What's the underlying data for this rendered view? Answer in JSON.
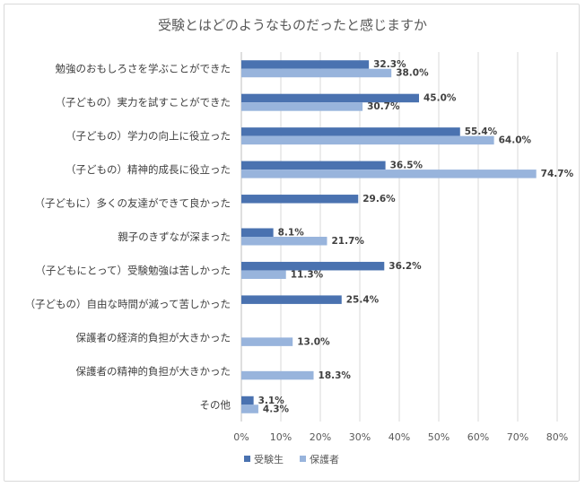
{
  "chart_data": {
    "type": "bar",
    "orientation": "horizontal",
    "title": "受験とはどのようなものだったと感じますか",
    "categories": [
      "勉強のおもしろさを学ぶことができた",
      "（子どもの）実力を試すことができた",
      "（子どもの）学力の向上に役立った",
      "（子どもの）精神的成長に役立った",
      "（子どもに）多くの友達ができて良かった",
      "親子のきずなが深まった",
      "（子どもにとって）受験勉強は苦しかった",
      "（子どもの）自由な時間が減って苦しかった",
      "保護者の経済的負担が大きかった",
      "保護者の精神的負担が大きかった",
      "その他"
    ],
    "series": [
      {
        "name": "受験生",
        "color": "#4a72b0",
        "values": [
          32.3,
          45.0,
          55.4,
          36.5,
          29.6,
          8.1,
          36.2,
          25.4,
          null,
          null,
          3.1
        ],
        "labels": [
          "32.3%",
          "45.0%",
          "55.4%",
          "36.5%",
          "29.6%",
          "8.1%",
          "36.2%",
          "25.4%",
          "",
          "",
          "3.1%"
        ]
      },
      {
        "name": "保護者",
        "color": "#98b4dc",
        "values": [
          38.0,
          30.7,
          64.0,
          74.7,
          null,
          21.7,
          11.3,
          null,
          13.0,
          18.3,
          4.3
        ],
        "labels": [
          "38.0%",
          "30.7%",
          "64.0%",
          "74.7%",
          "",
          "21.7%",
          "11.3%",
          "",
          "13.0%",
          "18.3%",
          "4.3%"
        ]
      }
    ],
    "xlim": [
      0,
      80
    ],
    "xticks": [
      "0%",
      "10%",
      "20%",
      "30%",
      "40%",
      "50%",
      "60%",
      "70%",
      "80%"
    ],
    "grid": true,
    "legend": "bottom"
  }
}
